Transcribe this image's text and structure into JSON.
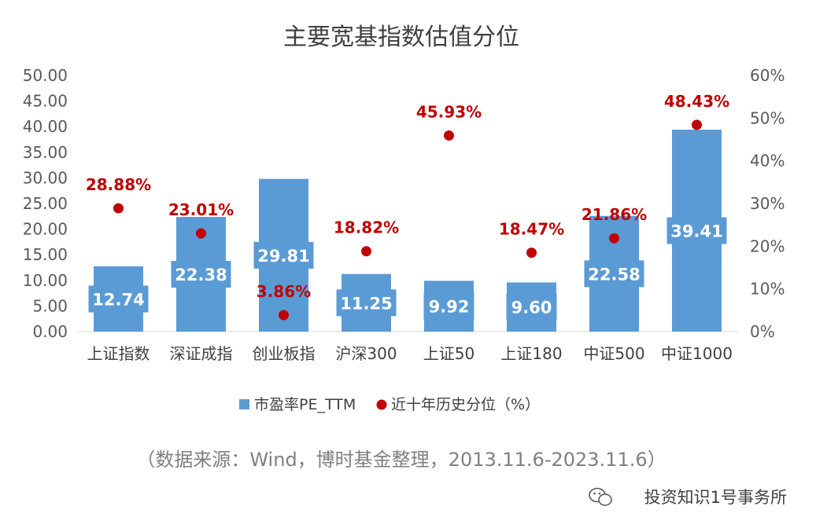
{
  "chart_data": {
    "type": "bar",
    "title": "主要宽基指数估值分位",
    "categories": [
      "上证指数",
      "深证成指",
      "创业板指",
      "沪深300",
      "上证50",
      "上证180",
      "中证500",
      "中证1000"
    ],
    "series": [
      {
        "name": "市盈率PE_TTM",
        "type": "bar",
        "axis": "left",
        "values": [
          12.74,
          22.38,
          29.81,
          11.25,
          9.92,
          9.6,
          22.58,
          39.41
        ],
        "labels": [
          "12.74",
          "22.38",
          "29.81",
          "11.25",
          "9.92",
          "9.60",
          "22.58",
          "39.41"
        ],
        "color": "#5b9bd5"
      },
      {
        "name": "近十年历史分位（%）",
        "type": "scatter",
        "axis": "right",
        "values": [
          28.88,
          23.01,
          3.86,
          18.82,
          45.93,
          18.47,
          21.86,
          48.43
        ],
        "labels": [
          "28.88%",
          "23.01%",
          "3.86%",
          "18.82%",
          "45.93%",
          "18.47%",
          "21.86%",
          "48.43%"
        ],
        "color": "#c00000"
      }
    ],
    "ylim": [
      0,
      50
    ],
    "y_ticks": [
      "0.00",
      "5.00",
      "10.00",
      "15.00",
      "20.00",
      "25.00",
      "30.00",
      "35.00",
      "40.00",
      "45.00",
      "50.00"
    ],
    "y2lim": [
      0,
      60
    ],
    "y2_ticks": [
      "0%",
      "10%",
      "20%",
      "30%",
      "40%",
      "50%",
      "60%"
    ],
    "grid": false,
    "legend_position": "bottom"
  },
  "source_note": "（数据来源：Wind，博时基金整理，2013.11.6-2023.11.6）",
  "watermark": "投资知识1号事务所"
}
